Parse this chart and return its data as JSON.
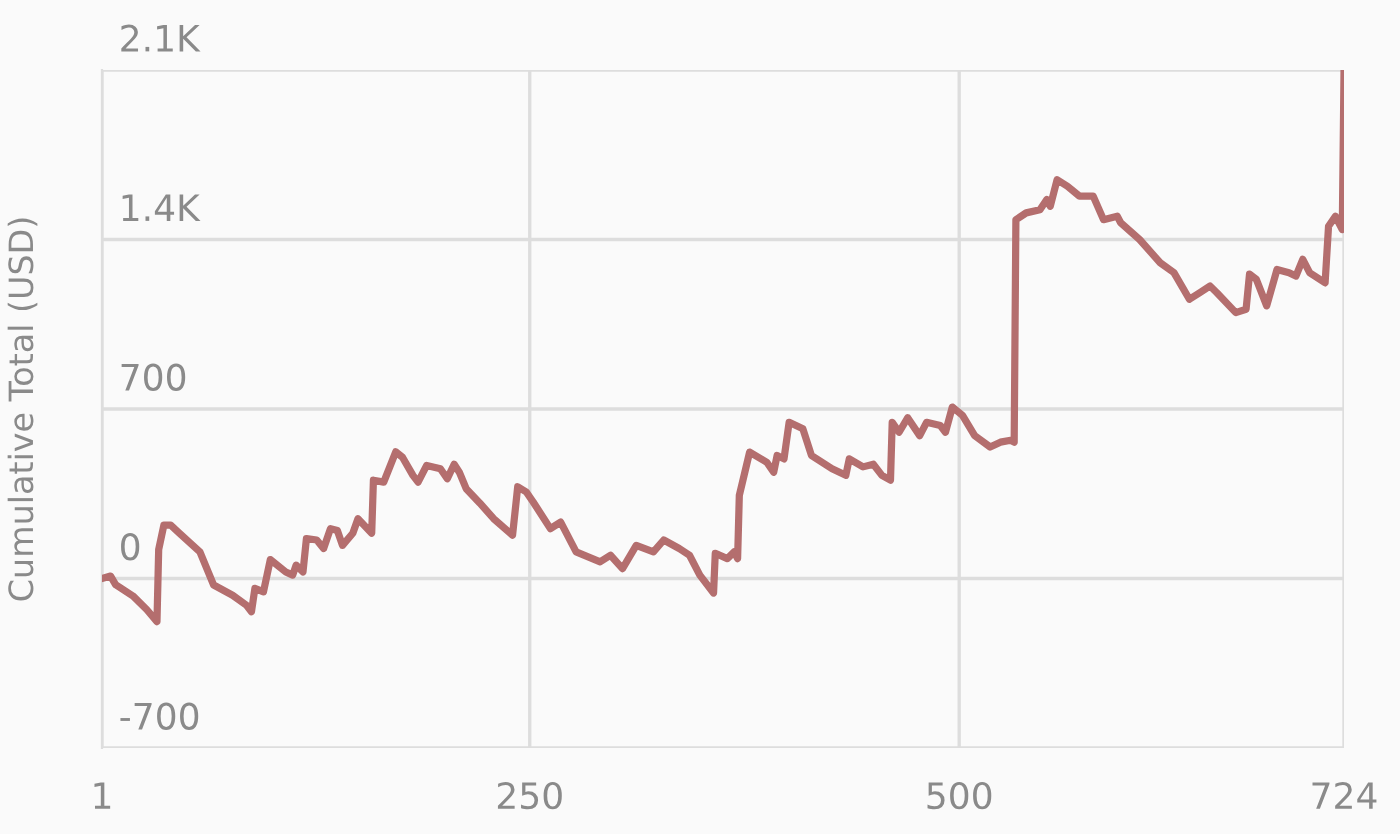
{
  "chart_data": {
    "type": "line",
    "ylabel": "Cumulative Total (USD)",
    "xlim": [
      1,
      724
    ],
    "xticks": [
      1,
      250,
      500,
      724
    ],
    "ylim": [
      -700,
      2100
    ],
    "yticks": [
      {
        "value": -700,
        "label": "-700"
      },
      {
        "value": 0,
        "label": "0"
      },
      {
        "value": 700,
        "label": "700"
      },
      {
        "value": 1400,
        "label": "1.4K"
      },
      {
        "value": 2100,
        "label": "2.1K"
      }
    ],
    "grid": true,
    "marker": "none",
    "line_style": "solid",
    "series": [
      {
        "color": "#b46e6e",
        "x": [
          1,
          6,
          9,
          19,
          27,
          33,
          34,
          37,
          41,
          46,
          58,
          66,
          77,
          85,
          88,
          90,
          95,
          99,
          108,
          112,
          114,
          118,
          120,
          126,
          130,
          134,
          138,
          141,
          147,
          150,
          158,
          159,
          165,
          172,
          176,
          182,
          185,
          190,
          198,
          202,
          206,
          209,
          213,
          221,
          229,
          240,
          243,
          248,
          252,
          262,
          268,
          277,
          291,
          297,
          304,
          312,
          322,
          328,
          337,
          343,
          349,
          357,
          358,
          365,
          369,
          371,
          372,
          378,
          388,
          392,
          394,
          398,
          401,
          409,
          414,
          426,
          434,
          436,
          444,
          450,
          455,
          460,
          461,
          465,
          470,
          477,
          481,
          489,
          492,
          496,
          502,
          509,
          518,
          524,
          530,
          532,
          533,
          539,
          547,
          551,
          553,
          557,
          563,
          570,
          578,
          584,
          592,
          594,
          605,
          617,
          625,
          634,
          640,
          646,
          650,
          661,
          667,
          669,
          673,
          679,
          685,
          692,
          696,
          700,
          704,
          713,
          715,
          719,
          723,
          724
        ],
        "values": [
          0,
          10,
          -26,
          -72,
          -128,
          -178,
          120,
          220,
          220,
          187,
          110,
          -27,
          -69,
          -110,
          -137,
          -41,
          -55,
          78,
          27,
          14,
          55,
          27,
          165,
          159,
          124,
          206,
          198,
          137,
          187,
          247,
          187,
          406,
          398,
          523,
          500,
          426,
          398,
          467,
          453,
          412,
          472,
          439,
          371,
          311,
          247,
          179,
          379,
          357,
          316,
          206,
          233,
          110,
          69,
          96,
          41,
          137,
          110,
          159,
          124,
          96,
          14,
          -60,
          104,
          82,
          110,
          82,
          343,
          522,
          480,
          439,
          508,
          494,
          645,
          618,
          508,
          453,
          426,
          494,
          461,
          472,
          426,
          406,
          645,
          604,
          664,
          590,
          645,
          632,
          604,
          708,
          673,
          590,
          543,
          563,
          571,
          563,
          1482,
          1510,
          1523,
          1565,
          1537,
          1647,
          1620,
          1579,
          1579,
          1482,
          1496,
          1469,
          1400,
          1304,
          1263,
          1153,
          1180,
          1208,
          1180,
          1098,
          1112,
          1257,
          1235,
          1126,
          1276,
          1263,
          1249,
          1318,
          1263,
          1221,
          1455,
          1496,
          1441,
          2086
        ]
      }
    ]
  }
}
